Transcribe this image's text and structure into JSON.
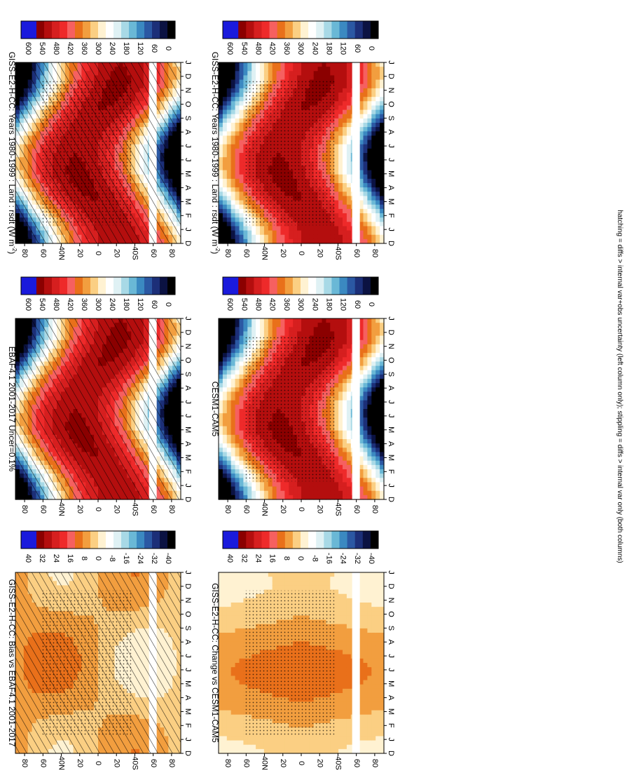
{
  "footnote": "hatching = diffs > internal var+obs uncertainty (left column only); stippling = diffs > internal var only (both columns)",
  "chart_data": [
    {
      "type": "heatmap",
      "id": "p1",
      "title": "GISS-E2-H-CC: Years 1980-1999 : Land : rsdt (W m",
      "title_sup": "-2",
      "title_tail": ")",
      "xlabel": "",
      "ylabel": "",
      "x_ticks": [
        "D",
        "J",
        "F",
        "M",
        "A",
        "M",
        "J",
        "J",
        "A",
        "S",
        "O",
        "N",
        "D",
        "J"
      ],
      "y_ticks": [
        "80",
        "60",
        "40N",
        "20",
        "0",
        "20",
        "40S",
        "60",
        "80"
      ],
      "ylim": [
        -90,
        90
      ],
      "field": "rsdt",
      "marks": [
        "hatching",
        "stippling"
      ],
      "colorbar": {
        "labels": [
          "600",
          "540",
          "480",
          "420",
          "360",
          "300",
          "240",
          "180",
          "120",
          "60",
          "0"
        ]
      }
    },
    {
      "type": "heatmap",
      "id": "p2",
      "title": "GISS-E2-H-CC: Years 1980-1999 : Land : rsdt (W m",
      "title_sup": "-2",
      "title_tail": ")",
      "xlabel": "",
      "ylabel": "",
      "x_ticks": [
        "D",
        "J",
        "F",
        "M",
        "A",
        "M",
        "J",
        "J",
        "A",
        "S",
        "O",
        "N",
        "D",
        "J"
      ],
      "y_ticks": [
        "80",
        "60",
        "40N",
        "20",
        "0",
        "20",
        "40S",
        "60",
        "80"
      ],
      "ylim": [
        -90,
        90
      ],
      "field": "rsdt",
      "marks": [
        "stippling"
      ],
      "colorbar": {
        "labels": [
          "600",
          "540",
          "480",
          "420",
          "360",
          "300",
          "240",
          "180",
          "120",
          "60",
          "0"
        ]
      }
    },
    {
      "type": "heatmap",
      "id": "p3",
      "title": "EBAF4.1 2001-2017 Uncer=0.1%",
      "title_sup": "",
      "title_tail": "",
      "xlabel": "",
      "ylabel": "",
      "x_ticks": [
        "D",
        "J",
        "F",
        "M",
        "A",
        "M",
        "J",
        "J",
        "A",
        "S",
        "O",
        "N",
        "D",
        "J"
      ],
      "y_ticks": [
        "80",
        "60",
        "40N",
        "20",
        "0",
        "20",
        "40S",
        "60",
        "80"
      ],
      "ylim": [
        -90,
        90
      ],
      "field": "rsdt",
      "marks": [
        "hatching"
      ],
      "colorbar": {
        "labels": [
          "600",
          "540",
          "480",
          "420",
          "360",
          "300",
          "240",
          "180",
          "120",
          "60",
          "0"
        ]
      }
    },
    {
      "type": "heatmap",
      "id": "p4",
      "title": "CESM1-CAM5",
      "title_sup": "",
      "title_tail": "",
      "xlabel": "",
      "ylabel": "",
      "x_ticks": [
        "D",
        "J",
        "F",
        "M",
        "A",
        "M",
        "J",
        "J",
        "A",
        "S",
        "O",
        "N",
        "D",
        "J"
      ],
      "y_ticks": [
        "80",
        "60",
        "40N",
        "20",
        "0",
        "20",
        "40S",
        "60",
        "80"
      ],
      "ylim": [
        -90,
        90
      ],
      "field": "rsdt",
      "marks": [
        "stippling"
      ],
      "colorbar": {
        "labels": [
          "600",
          "540",
          "480",
          "420",
          "360",
          "300",
          "240",
          "180",
          "120",
          "60",
          "0"
        ]
      }
    },
    {
      "type": "heatmap",
      "id": "p5",
      "title": "GISS-E2-H-CC: Bias vs EBAF4.1 2001-2017",
      "title_sup": "",
      "title_tail": "",
      "xlabel": "",
      "ylabel": "",
      "x_ticks": [
        "D",
        "J",
        "F",
        "M",
        "A",
        "M",
        "J",
        "J",
        "A",
        "S",
        "O",
        "N",
        "D",
        "J"
      ],
      "y_ticks": [
        "80",
        "60",
        "40N",
        "20",
        "0",
        "20",
        "40S",
        "60",
        "80"
      ],
      "ylim": [
        -90,
        90
      ],
      "field": "diff",
      "marks": [
        "hatching",
        "stippling"
      ],
      "colorbar": {
        "labels": [
          "40",
          "32",
          "24",
          "16",
          "8",
          "0",
          "-8",
          "-16",
          "-24",
          "-32",
          "-40"
        ]
      }
    },
    {
      "type": "heatmap",
      "id": "p6",
      "title": "GISS-E2-H-CC: Change vs CESM1-CAM5",
      "title_sup": "",
      "title_tail": "",
      "xlabel": "",
      "ylabel": "",
      "x_ticks": [
        "D",
        "J",
        "F",
        "M",
        "A",
        "M",
        "J",
        "J",
        "A",
        "S",
        "O",
        "N",
        "D",
        "J"
      ],
      "y_ticks": [
        "80",
        "60",
        "40N",
        "20",
        "0",
        "20",
        "40S",
        "60",
        "80"
      ],
      "ylim": [
        -90,
        90
      ],
      "field": "diff",
      "marks": [
        "stippling"
      ],
      "colorbar": {
        "labels": [
          "40",
          "32",
          "24",
          "16",
          "8",
          "0",
          "-8",
          "-16",
          "-24",
          "-32",
          "-40"
        ]
      }
    }
  ],
  "colors": {
    "rsdt_scale": [
      "#1a1adc",
      "#1a1adc",
      "#8b0000",
      "#b40e0e",
      "#d61f1f",
      "#ee2a2a",
      "#f66060",
      "#e9701a",
      "#f29e3f",
      "#fbcf83",
      "#fff2d2",
      "#ffffff",
      "#dff1f4",
      "#a8d9e6",
      "#6ab8d6",
      "#3b89c1",
      "#2b58a3",
      "#1c2f78",
      "#0b1242",
      "#000000"
    ],
    "diff_scale": [
      "#1a1adc",
      "#1a1adc",
      "#8b0000",
      "#b40e0e",
      "#d61f1f",
      "#ee2a2a",
      "#f66060",
      "#e9701a",
      "#f29e3f",
      "#fbcf83",
      "#fff2d2",
      "#ffffff",
      "#dff1f4",
      "#a8d9e6",
      "#6ab8d6",
      "#3b89c1",
      "#2b58a3",
      "#1c2f78",
      "#0b1242",
      "#000000"
    ],
    "missing_band": "#ffffff"
  }
}
